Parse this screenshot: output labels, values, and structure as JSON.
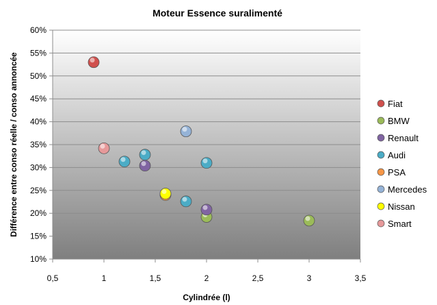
{
  "chart_data": {
    "type": "scatter",
    "title": "Moteur Essence suralimenté",
    "xlabel": "Cylindrée (l)",
    "ylabel": "Différence entre conso réelle / conso annoncée",
    "xlim": [
      0.5,
      3.5
    ],
    "ylim": [
      10,
      60
    ],
    "xticks": [
      "0,5",
      "1",
      "1,5",
      "2",
      "2,5",
      "3",
      "3,5"
    ],
    "yticks": [
      "10%",
      "15%",
      "20%",
      "25%",
      "30%",
      "35%",
      "40%",
      "45%",
      "50%",
      "55%",
      "60%"
    ],
    "x_tick_values": [
      0.5,
      1,
      1.5,
      2,
      2.5,
      3,
      3.5
    ],
    "y_tick_values": [
      10,
      15,
      20,
      25,
      30,
      35,
      40,
      45,
      50,
      55,
      60
    ],
    "grid": true,
    "legend_position": "right",
    "series": [
      {
        "name": "Fiat",
        "color": "#d0504d",
        "points": [
          [
            0.9,
            53.0
          ]
        ]
      },
      {
        "name": "BMW",
        "color": "#9bbb59",
        "points": [
          [
            2.0,
            19.2
          ],
          [
            3.0,
            18.4
          ]
        ]
      },
      {
        "name": "Renault",
        "color": "#8064a2",
        "points": [
          [
            1.4,
            30.4
          ],
          [
            2.0,
            20.8
          ]
        ]
      },
      {
        "name": "Audi",
        "color": "#4bacc6",
        "points": [
          [
            1.2,
            31.3
          ],
          [
            1.4,
            32.8
          ],
          [
            1.8,
            22.6
          ],
          [
            2.0,
            31.0
          ]
        ]
      },
      {
        "name": "PSA",
        "color": "#f79646",
        "points": [
          [
            1.6,
            24.0
          ]
        ]
      },
      {
        "name": "Mercedes",
        "color": "#95b3d7",
        "points": [
          [
            1.8,
            37.9
          ]
        ]
      },
      {
        "name": "Nissan",
        "color": "#ffff00",
        "points": [
          [
            1.6,
            24.3
          ]
        ]
      },
      {
        "name": "Smart",
        "color": "#e6999a",
        "points": [
          [
            1.0,
            34.2
          ]
        ]
      }
    ]
  }
}
